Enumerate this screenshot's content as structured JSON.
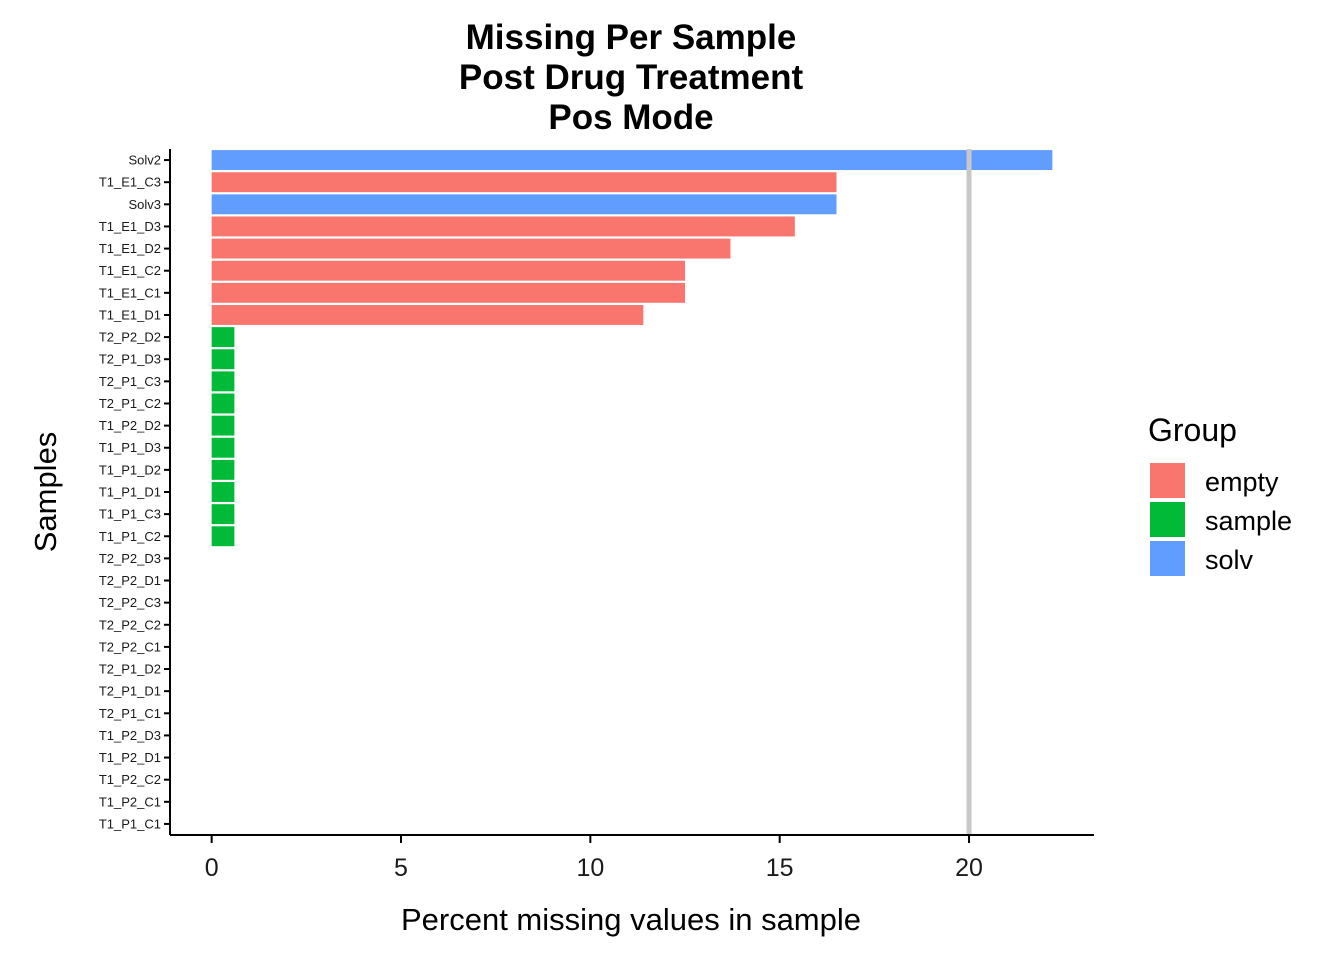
{
  "chart_data": {
    "type": "bar",
    "orientation": "horizontal",
    "title": [
      "Missing Per Sample",
      "Post Drug Treatment",
      "Pos Mode"
    ],
    "xlabel": "Percent missing values in sample",
    "ylabel": "Samples",
    "xlim": [
      -1.1,
      23.3
    ],
    "x_ticks": [
      0,
      5,
      10,
      15,
      20
    ],
    "reference_line": {
      "x": 20,
      "color": "#c8c8c8"
    },
    "grid": false,
    "legend": {
      "title": "Group",
      "placement": "right"
    },
    "groups": [
      {
        "name": "empty",
        "color": "#F8766D"
      },
      {
        "name": "sample",
        "color": "#00BA38"
      },
      {
        "name": "solv",
        "color": "#619CFF"
      }
    ],
    "categories": [
      "Solv2",
      "T1_E1_C3",
      "Solv3",
      "T1_E1_D3",
      "T1_E1_D2",
      "T1_E1_C2",
      "T1_E1_C1",
      "T1_E1_D1",
      "T2_P2_D2",
      "T2_P1_D3",
      "T2_P1_C3",
      "T2_P1_C2",
      "T1_P2_D2",
      "T1_P1_D3",
      "T1_P1_D2",
      "T1_P1_D1",
      "T1_P1_C3",
      "T1_P1_C2",
      "T2_P2_D3",
      "T2_P2_D1",
      "T2_P2_C3",
      "T2_P2_C2",
      "T2_P2_C1",
      "T2_P1_D2",
      "T2_P1_D1",
      "T2_P1_C1",
      "T1_P2_D3",
      "T1_P2_D1",
      "T1_P2_C2",
      "T1_P2_C1",
      "T1_P1_C1"
    ],
    "values": [
      22.2,
      16.5,
      16.5,
      15.4,
      13.7,
      12.5,
      12.5,
      11.4,
      0.6,
      0.6,
      0.6,
      0.6,
      0.6,
      0.6,
      0.6,
      0.6,
      0.6,
      0.6,
      0,
      0,
      0,
      0,
      0,
      0,
      0,
      0,
      0,
      0,
      0,
      0,
      0
    ],
    "bar_groups": [
      "solv",
      "empty",
      "solv",
      "empty",
      "empty",
      "empty",
      "empty",
      "empty",
      "sample",
      "sample",
      "sample",
      "sample",
      "sample",
      "sample",
      "sample",
      "sample",
      "sample",
      "sample",
      "sample",
      "sample",
      "sample",
      "sample",
      "sample",
      "sample",
      "sample",
      "sample",
      "sample",
      "sample",
      "sample",
      "sample",
      "sample"
    ]
  }
}
